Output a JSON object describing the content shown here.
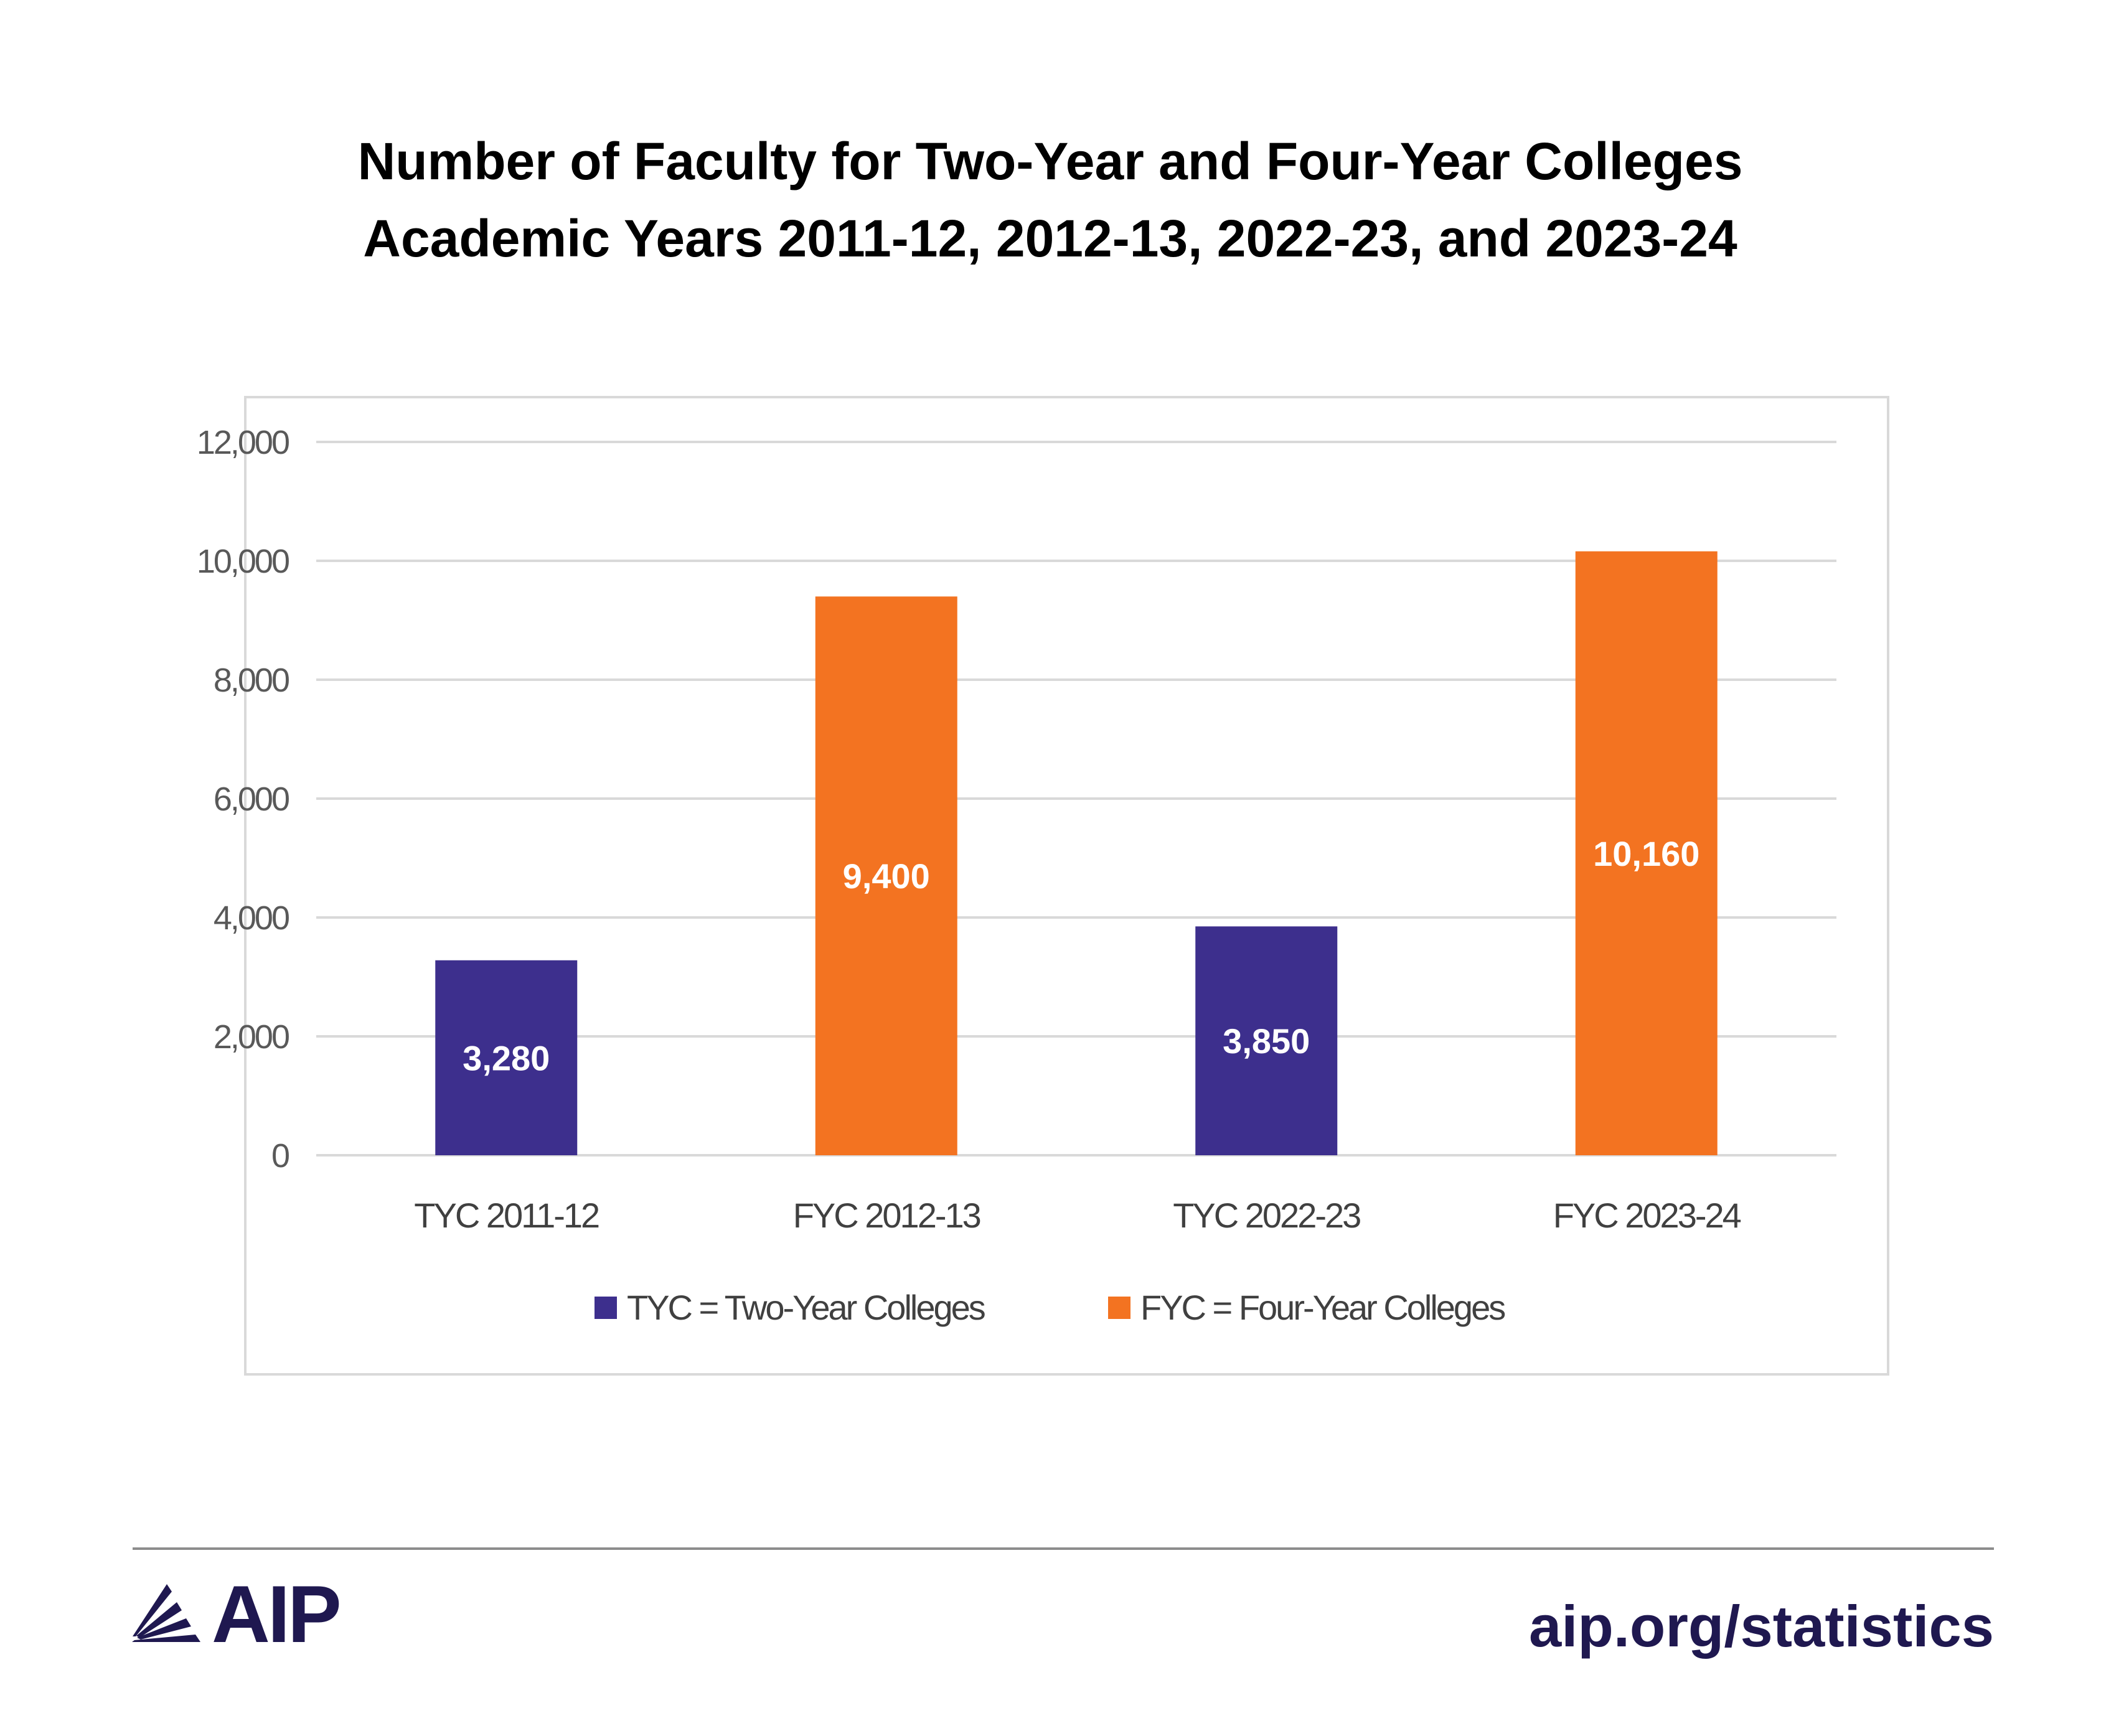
{
  "chart_data": {
    "type": "bar",
    "title": "Number of Faculty for Two-Year and Four-Year Colleges",
    "subtitle": "Academic Years 2011-12, 2012-13, 2022-23, and 2023-24",
    "categories": [
      "TYC 2011-12",
      "FYC 2012-13",
      "TYC 2022-23",
      "FYC 2023-24"
    ],
    "values": [
      3280,
      9400,
      3850,
      10160
    ],
    "data_labels": [
      "3,280",
      "9,400",
      "3,850",
      "10,160"
    ],
    "bar_groups": [
      "TYC",
      "FYC",
      "TYC",
      "FYC"
    ],
    "ylim": [
      0,
      12000
    ],
    "yticks": [
      0,
      2000,
      4000,
      6000,
      8000,
      10000,
      12000
    ],
    "ytick_labels": [
      "0",
      "2,000",
      "4,000",
      "6,000",
      "8,000",
      "10,000",
      "12,000"
    ],
    "grid": true,
    "legend_position": "bottom",
    "legend": [
      {
        "key": "TYC",
        "label": "TYC = Two-Year Colleges",
        "color": "#3d2f8d"
      },
      {
        "key": "FYC",
        "label": "FYC = Four-Year Colleges",
        "color": "#f37321"
      }
    ]
  },
  "footer": {
    "logo_text": "AIP",
    "url": "aip.org/statistics"
  }
}
